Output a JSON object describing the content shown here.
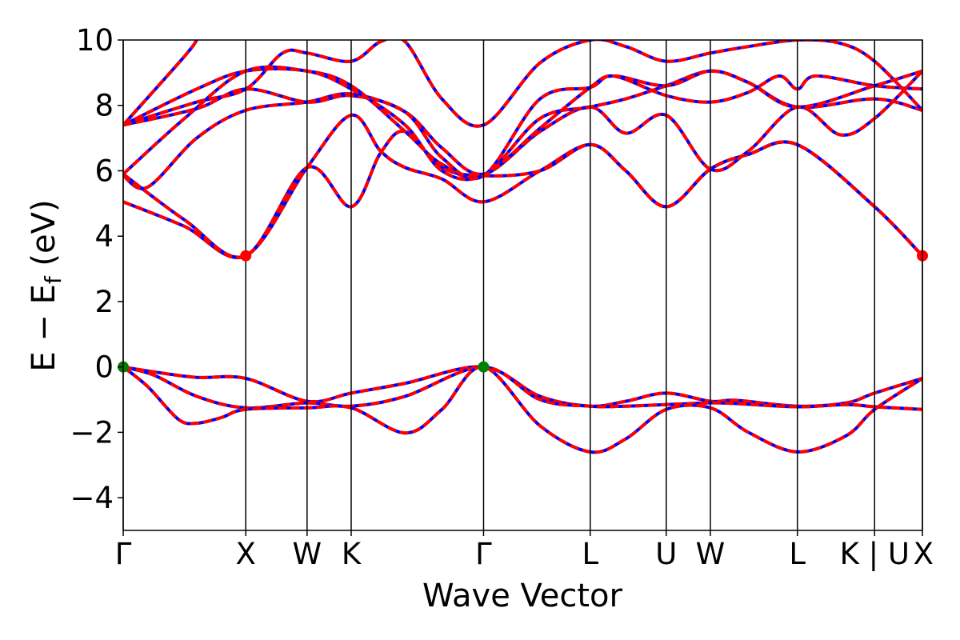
{
  "chart_data": {
    "type": "line",
    "title": "",
    "xlabel": "Wave Vector",
    "ylabel": {
      "main": "E − E",
      "sub": "f",
      "unit": " (eV)"
    },
    "ylim": [
      -5,
      10
    ],
    "yticks": [
      -4,
      -2,
      0,
      2,
      4,
      6,
      8,
      10
    ],
    "ytick_labels": [
      "−4",
      "−2",
      "0",
      "2",
      "4",
      "6",
      "8",
      "10"
    ],
    "xlim": [
      0,
      6.52
    ],
    "kpoints": [
      {
        "label": "Γ",
        "x": 0.0
      },
      {
        "label": "X",
        "x": 1.0
      },
      {
        "label": "W",
        "x": 1.5
      },
      {
        "label": "K",
        "x": 1.86
      },
      {
        "label": "Γ",
        "x": 2.94
      },
      {
        "label": "L",
        "x": 3.81
      },
      {
        "label": "U",
        "x": 4.43
      },
      {
        "label": "W",
        "x": 4.79
      },
      {
        "label": "L",
        "x": 5.5
      },
      {
        "label": "K | U",
        "x": 6.13
      },
      {
        "label": "X",
        "x": 6.52
      }
    ],
    "colors": {
      "band_solid": "#0000ff",
      "band_dashed": "#ff0000",
      "vbm_marker": "#008000",
      "cbm_marker": "#ff0000"
    },
    "markers": [
      {
        "name": "vbm",
        "x": 0.0,
        "y": 0.0,
        "color": "#008000"
      },
      {
        "name": "vbm",
        "x": 2.94,
        "y": 0.0,
        "color": "#008000"
      },
      {
        "name": "cbm",
        "x": 1.0,
        "y": 3.4,
        "color": "#ff0000"
      },
      {
        "name": "cbm",
        "x": 6.52,
        "y": 3.4,
        "color": "#ff0000"
      }
    ],
    "bands": [
      {
        "points": [
          [
            0,
            0
          ],
          [
            0.25,
            -0.15
          ],
          [
            0.6,
            -0.32
          ],
          [
            1.0,
            -0.35
          ],
          [
            1.5,
            -1.05
          ],
          [
            1.86,
            -0.8
          ],
          [
            2.3,
            -0.5
          ],
          [
            2.94,
            0
          ],
          [
            3.4,
            -0.9
          ],
          [
            3.81,
            -1.2
          ],
          [
            4.1,
            -1.05
          ],
          [
            4.43,
            -0.8
          ],
          [
            4.79,
            -1.05
          ],
          [
            5.0,
            -1.02
          ],
          [
            5.5,
            -1.2
          ],
          [
            5.9,
            -1.1
          ],
          [
            6.13,
            -0.8
          ],
          [
            6.52,
            -0.35
          ]
        ]
      },
      {
        "points": [
          [
            0,
            0
          ],
          [
            0.25,
            -0.25
          ],
          [
            0.6,
            -0.9
          ],
          [
            1.0,
            -1.25
          ],
          [
            1.5,
            -1.1
          ],
          [
            1.86,
            -1.2
          ],
          [
            2.3,
            -0.9
          ],
          [
            2.94,
            0
          ],
          [
            3.4,
            -1.0
          ],
          [
            3.81,
            -1.2
          ],
          [
            4.1,
            -1.2
          ],
          [
            4.43,
            -1.15
          ],
          [
            4.79,
            -1.1
          ],
          [
            5.0,
            -1.12
          ],
          [
            5.5,
            -1.22
          ],
          [
            5.9,
            -1.15
          ],
          [
            6.13,
            -1.22
          ],
          [
            6.52,
            -1.3
          ]
        ]
      },
      {
        "points": [
          [
            0,
            0
          ],
          [
            0.2,
            -0.6
          ],
          [
            0.45,
            -1.6
          ],
          [
            0.6,
            -1.72
          ],
          [
            0.8,
            -1.55
          ],
          [
            1.0,
            -1.3
          ],
          [
            1.5,
            -1.25
          ],
          [
            1.86,
            -1.25
          ],
          [
            2.3,
            -2.02
          ],
          [
            2.6,
            -1.3
          ],
          [
            2.94,
            0
          ],
          [
            3.4,
            -1.8
          ],
          [
            3.81,
            -2.6
          ],
          [
            4.1,
            -2.2
          ],
          [
            4.43,
            -1.3
          ],
          [
            4.79,
            -1.25
          ],
          [
            5.1,
            -2.0
          ],
          [
            5.5,
            -2.6
          ],
          [
            5.9,
            -2.1
          ],
          [
            6.13,
            -1.3
          ],
          [
            6.52,
            -0.35
          ]
        ]
      },
      {
        "points": [
          [
            0,
            5.05
          ],
          [
            0.5,
            4.3
          ],
          [
            1.0,
            3.4
          ],
          [
            1.5,
            6.1
          ],
          [
            1.86,
            7.7
          ],
          [
            2.1,
            6.6
          ],
          [
            2.3,
            6.1
          ],
          [
            2.6,
            5.75
          ],
          [
            2.94,
            5.05
          ],
          [
            3.4,
            6.0
          ],
          [
            3.81,
            6.8
          ],
          [
            4.1,
            6.0
          ],
          [
            4.43,
            4.9
          ],
          [
            4.79,
            6.05
          ],
          [
            5.1,
            6.5
          ],
          [
            5.5,
            6.8
          ],
          [
            6.13,
            4.9
          ],
          [
            6.52,
            3.4
          ]
        ]
      },
      {
        "points": [
          [
            0,
            5.9
          ],
          [
            0.5,
            4.5
          ],
          [
            1.0,
            3.4
          ],
          [
            1.5,
            6.1
          ],
          [
            1.86,
            4.9
          ],
          [
            2.1,
            6.55
          ],
          [
            2.3,
            7.2
          ],
          [
            2.6,
            6.1
          ],
          [
            2.94,
            5.85
          ],
          [
            3.4,
            6.0
          ],
          [
            3.81,
            6.8
          ],
          [
            4.1,
            6.0
          ],
          [
            4.43,
            4.9
          ],
          [
            4.79,
            6.05
          ],
          [
            5.1,
            6.5
          ],
          [
            5.5,
            6.8
          ],
          [
            6.13,
            4.9
          ],
          [
            6.52,
            3.4
          ]
        ]
      },
      {
        "points": [
          [
            0,
            5.85
          ],
          [
            0.2,
            5.5
          ],
          [
            0.6,
            7.0
          ],
          [
            1.0,
            7.85
          ],
          [
            1.5,
            8.1
          ],
          [
            1.86,
            8.35
          ],
          [
            2.3,
            7.8
          ],
          [
            2.6,
            6.7
          ],
          [
            2.94,
            5.9
          ],
          [
            3.4,
            7.2
          ],
          [
            3.81,
            7.95
          ],
          [
            4.1,
            7.15
          ],
          [
            4.43,
            7.7
          ],
          [
            4.79,
            6.05
          ],
          [
            5.1,
            6.6
          ],
          [
            5.5,
            7.95
          ],
          [
            5.85,
            7.1
          ],
          [
            6.13,
            7.6
          ],
          [
            6.52,
            9.05
          ]
        ]
      },
      {
        "points": [
          [
            0,
            5.9
          ],
          [
            0.5,
            7.6
          ],
          [
            1.0,
            9.05
          ],
          [
            1.5,
            9.05
          ],
          [
            1.86,
            8.6
          ],
          [
            2.3,
            7.2
          ],
          [
            2.6,
            6.2
          ],
          [
            2.94,
            5.85
          ],
          [
            3.4,
            7.6
          ],
          [
            3.81,
            7.95
          ],
          [
            4.1,
            8.2
          ],
          [
            4.43,
            8.6
          ],
          [
            4.79,
            9.05
          ],
          [
            5.1,
            8.7
          ],
          [
            5.5,
            7.95
          ],
          [
            6.13,
            8.2
          ],
          [
            6.52,
            7.85
          ]
        ]
      },
      {
        "points": [
          [
            0,
            7.4
          ],
          [
            0.6,
            8.1
          ],
          [
            1.0,
            8.5
          ],
          [
            1.3,
            9.6
          ],
          [
            1.5,
            9.6
          ],
          [
            1.86,
            9.35
          ],
          [
            2.1,
            9.95
          ],
          [
            2.3,
            9.95
          ],
          [
            2.6,
            8.2
          ],
          [
            2.94,
            7.4
          ],
          [
            3.4,
            9.3
          ],
          [
            3.81,
            10.0
          ],
          [
            4.1,
            9.8
          ],
          [
            4.43,
            9.35
          ],
          [
            4.79,
            9.6
          ],
          [
            5.1,
            9.8
          ],
          [
            5.5,
            10.0
          ],
          [
            5.85,
            9.9
          ],
          [
            6.13,
            9.35
          ],
          [
            6.52,
            7.85
          ]
        ]
      },
      {
        "points": [
          [
            0,
            7.4
          ],
          [
            0.5,
            9.5
          ],
          [
            0.6,
            10.0
          ]
        ]
      },
      {
        "points": [
          [
            0,
            7.4
          ],
          [
            0.6,
            7.9
          ],
          [
            1.0,
            8.5
          ],
          [
            1.5,
            8.1
          ],
          [
            1.86,
            8.3
          ],
          [
            2.3,
            7.8
          ],
          [
            2.6,
            6.4
          ],
          [
            2.94,
            5.85
          ],
          [
            3.4,
            8.2
          ],
          [
            3.81,
            8.55
          ],
          [
            4.0,
            8.9
          ],
          [
            4.43,
            8.3
          ],
          [
            4.79,
            8.1
          ],
          [
            5.1,
            8.4
          ],
          [
            5.35,
            8.9
          ],
          [
            5.5,
            8.5
          ],
          [
            5.65,
            8.9
          ],
          [
            6.13,
            8.6
          ],
          [
            6.52,
            8.5
          ]
        ]
      },
      {
        "points": [
          [
            0,
            7.4
          ],
          [
            0.6,
            8.5
          ],
          [
            1.0,
            9.05
          ],
          [
            1.5,
            9.05
          ],
          [
            1.86,
            8.5
          ],
          [
            2.3,
            7.4
          ],
          [
            2.6,
            6.0
          ],
          [
            2.94,
            5.85
          ],
          [
            3.4,
            7.3
          ],
          [
            3.81,
            8.55
          ],
          [
            4.0,
            8.9
          ],
          [
            4.43,
            8.6
          ],
          [
            4.79,
            9.05
          ],
          [
            5.1,
            8.7
          ],
          [
            5.5,
            7.95
          ],
          [
            6.13,
            8.6
          ],
          [
            6.52,
            9.05
          ]
        ]
      }
    ]
  }
}
